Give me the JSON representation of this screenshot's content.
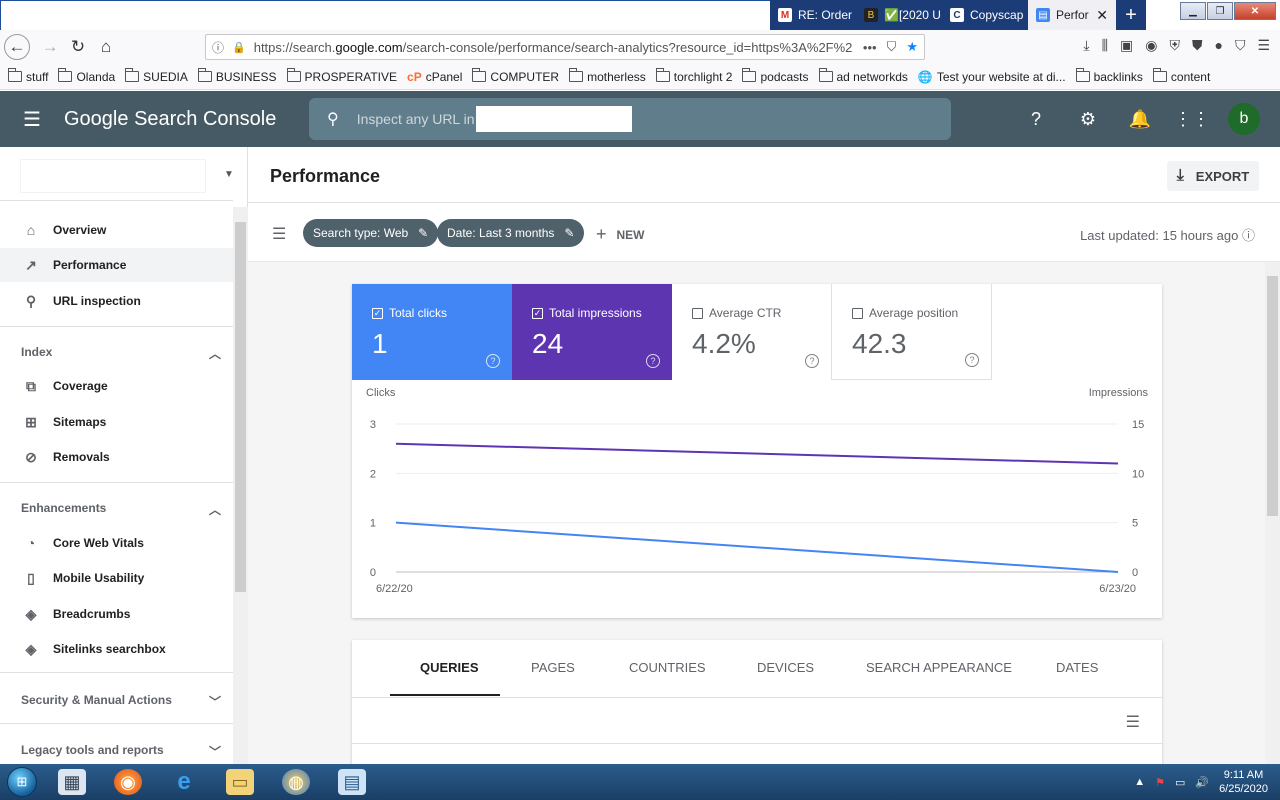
{
  "browser": {
    "tabs": [
      {
        "label": "RE: Order",
        "icon": "gmail-icon",
        "color": "#d93025"
      },
      {
        "label": "✅[2020 U",
        "icon": "bee-icon",
        "color": "#222222"
      },
      {
        "label": "Copyscap",
        "icon": "copyscape-icon",
        "color": "#ffffff"
      },
      {
        "label": "Perfor",
        "icon": "search-console-icon",
        "color": "#4285f4"
      }
    ],
    "url_prefix": "https://search.",
    "url_domain": "google.com",
    "url_rest": "/search-console/performance/search-analytics?resource_id=https%3A%2F%2",
    "bookmarks": [
      "stuff",
      "Olanda",
      "SUEDIA",
      "BUSINESS",
      "PROSPERATIVE",
      "cPanel",
      "COMPUTER",
      "motherless",
      "torchlight 2",
      "podcasts",
      "ad networkds",
      "Test your website at di...",
      "backlinks",
      "content"
    ]
  },
  "header": {
    "logo_google": "Google",
    "logo_product": "Search Console",
    "search_placeholder": "Inspect any URL in",
    "avatar_letter": "b"
  },
  "sidebar": {
    "items_top": [
      {
        "label": "Overview",
        "icon": "home-icon"
      },
      {
        "label": "Performance",
        "icon": "trending-up-icon"
      },
      {
        "label": "URL inspection",
        "icon": "search-icon"
      }
    ],
    "section_index": "Index",
    "items_index": [
      {
        "label": "Coverage",
        "icon": "coverage-icon"
      },
      {
        "label": "Sitemaps",
        "icon": "sitemap-icon"
      },
      {
        "label": "Removals",
        "icon": "eye-off-icon"
      }
    ],
    "section_enh": "Enhancements",
    "items_enh": [
      {
        "label": "Core Web Vitals",
        "icon": "gauge-icon"
      },
      {
        "label": "Mobile Usability",
        "icon": "phone-icon"
      },
      {
        "label": "Breadcrumbs",
        "icon": "layers-icon"
      },
      {
        "label": "Sitelinks searchbox",
        "icon": "layers-icon"
      }
    ],
    "section_security": "Security & Manual Actions",
    "section_legacy": "Legacy tools and reports"
  },
  "performance": {
    "title": "Performance",
    "export_label": "EXPORT",
    "chip_search_type": "Search type: Web",
    "chip_date": "Date: Last 3 months",
    "new_label": "NEW",
    "last_updated": "Last updated: 15 hours ago"
  },
  "metrics": [
    {
      "label": "Total clicks",
      "value": "1",
      "checked": true
    },
    {
      "label": "Total impressions",
      "value": "24",
      "checked": true
    },
    {
      "label": "Average CTR",
      "value": "4.2%",
      "checked": false
    },
    {
      "label": "Average position",
      "value": "42.3",
      "checked": false
    }
  ],
  "chart_data": {
    "type": "line",
    "x": [
      "6/22/20",
      "6/23/20"
    ],
    "series": [
      {
        "name": "Clicks",
        "axis": "left",
        "color": "#4285f4",
        "values": [
          1,
          0
        ]
      },
      {
        "name": "Impressions",
        "axis": "right",
        "color": "#5e35b1",
        "values": [
          13,
          11
        ]
      }
    ],
    "ylabel_left": "Clicks",
    "ylabel_right": "Impressions",
    "ylim_left": [
      0,
      3
    ],
    "ylim_right": [
      0,
      15
    ],
    "yticks_left": [
      0,
      1,
      2,
      3
    ],
    "yticks_right": [
      0,
      5,
      10,
      15
    ],
    "grid": true
  },
  "table_tabs": [
    "QUERIES",
    "PAGES",
    "COUNTRIES",
    "DEVICES",
    "SEARCH APPEARANCE",
    "DATES"
  ],
  "taskbar": {
    "time": "9:11 AM",
    "date": "6/25/2020"
  }
}
